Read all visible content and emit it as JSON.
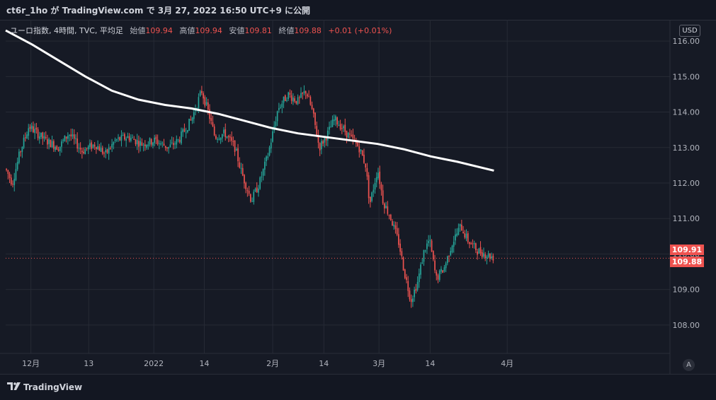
{
  "header": {
    "publish_line": "ct6r_1ho が TradingView.com で 3月 27, 2022 16:50 UTC+9 に公開"
  },
  "legend": {
    "symbol": "ユーロ指数, 4時間, TVC, 平均足",
    "open_label": "始値",
    "open": "109.94",
    "high_label": "高値",
    "high": "109.94",
    "low_label": "安値",
    "low": "109.81",
    "close_label": "終値",
    "close": "109.88",
    "change": "+0.01 (+0.01%)"
  },
  "currency": "USD",
  "auto_label": "A",
  "price_tags": {
    "upper": "109.91",
    "lower": "109.88"
  },
  "footer": {
    "brand": "TradingView"
  },
  "colors": {
    "up": "#26a69a",
    "down": "#ef5350",
    "ma": "#ffffff",
    "grid": "#262a35",
    "axis_text": "#b2b5be"
  },
  "chart_data": {
    "type": "candlestick",
    "ylim": [
      107.2,
      116.6
    ],
    "y_ticks": [
      "108.00",
      "109.00",
      "110.00",
      "111.00",
      "112.00",
      "113.00",
      "114.00",
      "115.00",
      "116.00"
    ],
    "x_labels": [
      {
        "label": "12月",
        "t": 0.0
      },
      {
        "label": "13",
        "t": 0.087
      },
      {
        "label": "2022",
        "t": 0.185
      },
      {
        "label": "14",
        "t": 0.261
      },
      {
        "label": "2月",
        "t": 0.364
      },
      {
        "label": "14",
        "t": 0.441
      },
      {
        "label": "3月",
        "t": 0.524
      },
      {
        "label": "14",
        "t": 0.601
      },
      {
        "label": "4月",
        "t": 0.717
      }
    ],
    "x_label_offset": 0.038,
    "anchors": [
      [
        0.0,
        112.4
      ],
      [
        0.01,
        112.0
      ],
      [
        0.022,
        112.9
      ],
      [
        0.035,
        113.6
      ],
      [
        0.06,
        113.2
      ],
      [
        0.08,
        113.0
      ],
      [
        0.095,
        113.4
      ],
      [
        0.115,
        112.9
      ],
      [
        0.135,
        113.1
      ],
      [
        0.15,
        112.8
      ],
      [
        0.165,
        113.2
      ],
      [
        0.185,
        113.3
      ],
      [
        0.205,
        113.1
      ],
      [
        0.225,
        113.2
      ],
      [
        0.245,
        113.0
      ],
      [
        0.26,
        113.2
      ],
      [
        0.28,
        113.8
      ],
      [
        0.295,
        114.6
      ],
      [
        0.305,
        114.0
      ],
      [
        0.315,
        113.3
      ],
      [
        0.33,
        113.4
      ],
      [
        0.345,
        113.0
      ],
      [
        0.355,
        112.3
      ],
      [
        0.37,
        111.5
      ],
      [
        0.382,
        112.0
      ],
      [
        0.395,
        112.8
      ],
      [
        0.41,
        114.1
      ],
      [
        0.425,
        114.5
      ],
      [
        0.44,
        114.3
      ],
      [
        0.452,
        114.6
      ],
      [
        0.462,
        114.0
      ],
      [
        0.472,
        113.0
      ],
      [
        0.485,
        113.4
      ],
      [
        0.495,
        113.8
      ],
      [
        0.505,
        113.6
      ],
      [
        0.518,
        113.3
      ],
      [
        0.532,
        113.0
      ],
      [
        0.542,
        112.5
      ],
      [
        0.548,
        111.4
      ],
      [
        0.56,
        112.4
      ],
      [
        0.568,
        111.5
      ],
      [
        0.58,
        111.0
      ],
      [
        0.592,
        110.3
      ],
      [
        0.6,
        109.5
      ],
      [
        0.61,
        108.7
      ],
      [
        0.62,
        109.2
      ],
      [
        0.63,
        110.1
      ],
      [
        0.638,
        110.4
      ],
      [
        0.648,
        109.3
      ],
      [
        0.66,
        109.6
      ],
      [
        0.672,
        110.3
      ],
      [
        0.685,
        110.8
      ],
      [
        0.695,
        110.4
      ],
      [
        0.71,
        110.1
      ],
      [
        0.722,
        110.0
      ],
      [
        0.735,
        109.9
      ]
    ],
    "ma": [
      [
        0.0,
        116.3
      ],
      [
        0.04,
        115.9
      ],
      [
        0.08,
        115.45
      ],
      [
        0.12,
        115.0
      ],
      [
        0.16,
        114.6
      ],
      [
        0.2,
        114.35
      ],
      [
        0.24,
        114.2
      ],
      [
        0.28,
        114.1
      ],
      [
        0.32,
        113.95
      ],
      [
        0.36,
        113.75
      ],
      [
        0.4,
        113.55
      ],
      [
        0.44,
        113.4
      ],
      [
        0.48,
        113.3
      ],
      [
        0.52,
        113.2
      ],
      [
        0.56,
        113.1
      ],
      [
        0.6,
        112.95
      ],
      [
        0.64,
        112.75
      ],
      [
        0.68,
        112.6
      ],
      [
        0.735,
        112.35
      ]
    ],
    "last_price": 109.88,
    "grid": true,
    "legend_position": "top-left"
  }
}
